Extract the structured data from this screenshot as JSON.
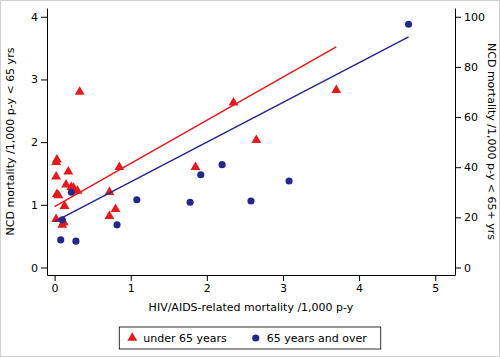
{
  "chart_data": {
    "type": "scatter",
    "x_label": "HIV/AIDS-related mortality /1,000 p-y",
    "y_label": "NCD mortality /1,000 p-y < 65 yrs",
    "y2_label": "NCD mortality /1,000 p-y < 65+ yrs",
    "xlim": [
      -0.1,
      5.26
    ],
    "xticks": [
      0,
      1,
      2,
      3,
      4,
      5
    ],
    "ylim": [
      -0.12,
      4.14
    ],
    "yticks": [
      0,
      1,
      2,
      3,
      4
    ],
    "y2lim": [
      -3,
      103.5
    ],
    "y2ticks": [
      0,
      20,
      40,
      60,
      80,
      100
    ],
    "grid": false,
    "legend": "bottom",
    "series": [
      {
        "name": "under 65 years",
        "color": "#e41a1c",
        "type": "scatter",
        "marker": "triangle",
        "axis": "y",
        "x": [
          0.02,
          0.03,
          0.02,
          0.03,
          0.05,
          0.02,
          0.1,
          0.12,
          0.13,
          0.15,
          0.18,
          0.22,
          0.25,
          0.3,
          0.33,
          0.72,
          0.72,
          0.8,
          0.85,
          1.85,
          2.35,
          2.65,
          3.7
        ],
        "values": [
          1.68,
          1.72,
          1.45,
          1.17,
          1.15,
          0.77,
          0.68,
          0.72,
          0.98,
          1.32,
          1.53,
          1.28,
          1.27,
          1.22,
          2.8,
          0.82,
          1.2,
          0.93,
          1.6,
          1.6,
          2.63,
          2.03,
          2.83
        ],
        "fit": {
          "x": [
            0,
            3.7
          ],
          "values": [
            0.97,
            3.52
          ]
        }
      },
      {
        "name": "65 years and over",
        "color": "#26268f",
        "type": "scatter",
        "marker": "circle",
        "axis": "y2",
        "x": [
          0.1,
          0.08,
          0.28,
          0.22,
          0.82,
          1.08,
          1.78,
          1.92,
          2.2,
          2.58,
          3.08,
          4.65
        ],
        "values": [
          19,
          11,
          10.5,
          30,
          17,
          27,
          26,
          37,
          41,
          26.5,
          34.5,
          97
        ],
        "fit": {
          "x": [
            0,
            4.65
          ],
          "values": [
            18.3,
            92
          ]
        }
      }
    ]
  }
}
